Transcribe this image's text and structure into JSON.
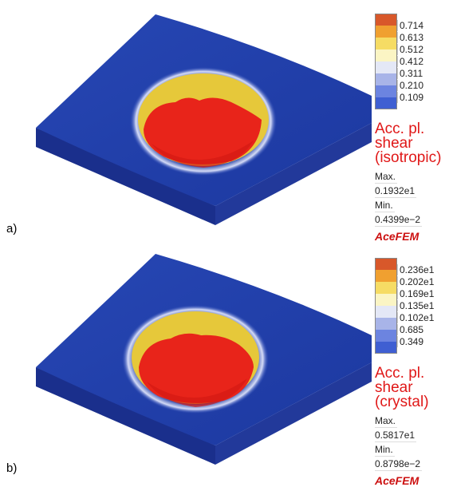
{
  "panels": [
    {
      "id": "a",
      "letter": "a)",
      "legend": {
        "ticks": [
          "0.714",
          "0.613",
          "0.512",
          "0.412",
          "0.311",
          "0.210",
          "0.109"
        ],
        "colors": [
          "#d8582a",
          "#f0a030",
          "#f6dc64",
          "#fbf5c4",
          "#e4e8f6",
          "#a8b4e8",
          "#6c84e0",
          "#3f5fd2"
        ],
        "title_line1": "Acc. pl.",
        "title_line2": "shear",
        "title_line3": "(isotropic)",
        "max_label": "Max.",
        "max_value": "0.1932e1",
        "min_label": "Min.",
        "min_value": "0.4399e−2"
      },
      "brand": "AceFEM"
    },
    {
      "id": "b",
      "letter": "b)",
      "legend": {
        "ticks": [
          "0.236e1",
          "0.202e1",
          "0.169e1",
          "0.135e1",
          "0.102e1",
          "0.685",
          "0.349"
        ],
        "colors": [
          "#d8582a",
          "#f0a030",
          "#f6dc64",
          "#fbf5c4",
          "#e4e8f6",
          "#a8b4e8",
          "#6c84e0",
          "#3f5fd2"
        ],
        "title_line1": "Acc. pl.",
        "title_line2": "shear",
        "title_line3": "(crystal)",
        "max_label": "Max.",
        "max_value": "0.5817e1",
        "min_label": "Min.",
        "min_value": "0.8798e−2"
      },
      "brand": "AceFEM"
    }
  ],
  "colors": {
    "plate_top": "#1f3fa8",
    "plate_side": "#1a2f8c",
    "crater_hot": "#e8241a",
    "crater_warm": "#e6c83a",
    "title_red": "#e01818"
  }
}
